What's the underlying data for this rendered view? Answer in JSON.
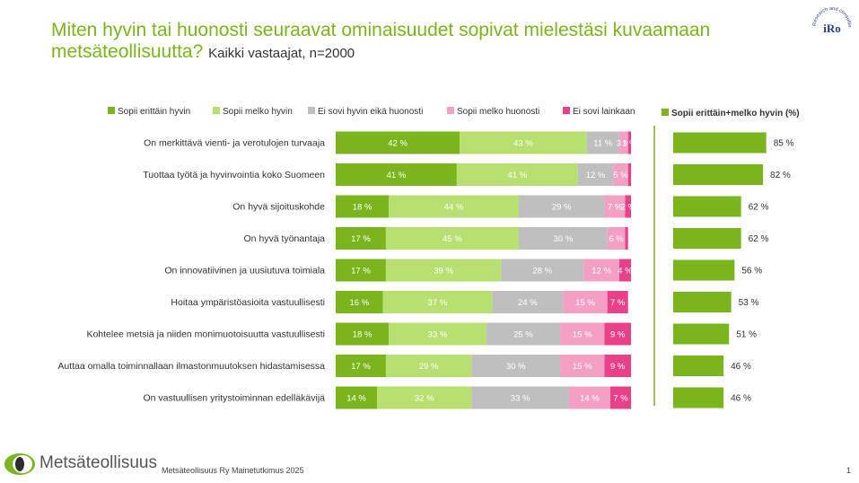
{
  "header": {
    "title": "Miten hyvin tai huonosti seuraavat ominaisuudet sopivat mielestäsi kuvaamaan metsäteollisuutta?",
    "subtitle": "Kaikki vastaajat, n=2000",
    "badge_text": "iRo",
    "badge_ring_text": "Research and consulting"
  },
  "footer": {
    "brand": "Metsäteollisuus",
    "source": "Metsäteollisuus Ry Mainetutkimus 2025",
    "page": "1"
  },
  "colors": {
    "title": "#7ab51d",
    "s1": "#7ab51d",
    "s2": "#b8e070",
    "s3": "#bfbfbf",
    "s4": "#f4a0c4",
    "s5": "#e8418a",
    "total": "#7ab51d"
  },
  "chart_data": [
    {
      "type": "bar",
      "orientation": "horizontal",
      "stacked": true,
      "legend_position": "top",
      "categories": [
        "On merkittävä vienti- ja verotulojen turvaaja",
        "Tuottaa työtä ja hyvinvointia koko Suomeen",
        "On hyvä sijoituskohde",
        "On hyvä työnantaja",
        "On innovatiivinen ja uusiutuva toimiala",
        "Hoitaa ympäristöasioita vastuullisesti",
        "Kohtelee metsiä ja niiden monimuotoisuutta vastuullisesti",
        "Auttaa omalla toiminnallaan ilmastonmuutoksen hidastamisessa",
        "On vastuullisen yritystoiminnan edelläkävijä"
      ],
      "series": [
        {
          "name": "Sopii erittäin hyvin",
          "values": [
            42,
            41,
            18,
            17,
            17,
            16,
            18,
            17,
            14
          ],
          "labels": [
            "42 %",
            "41 %",
            "18 %",
            "17 %",
            "17 %",
            "16 %",
            "18 %",
            "17 %",
            "14 %"
          ]
        },
        {
          "name": "Sopii melko hyvin",
          "values": [
            43,
            41,
            44,
            45,
            39,
            37,
            33,
            29,
            32
          ],
          "labels": [
            "43 %",
            "41 %",
            "44 %",
            "45 %",
            "39 %",
            "37 %",
            "33 %",
            "29 %",
            "32 %"
          ]
        },
        {
          "name": "Ei sovi hyvin eikä huonosti",
          "values": [
            11,
            12,
            29,
            30,
            28,
            24,
            25,
            30,
            33
          ],
          "labels": [
            "11 %",
            "12 %",
            "29 %",
            "30 %",
            "28 %",
            "24 %",
            "25 %",
            "30 %",
            "33 %"
          ]
        },
        {
          "name": "Sopii melko huonosti",
          "values": [
            3,
            5,
            7,
            6,
            12,
            15,
            15,
            15,
            14
          ],
          "labels": [
            "3 %",
            "5 %",
            "7 %",
            "6 %",
            "12 %",
            "15 %",
            "15 %",
            "15 %",
            "14 %"
          ]
        },
        {
          "name": "Ei sovi lainkaan",
          "values": [
            1,
            1,
            2,
            1,
            4,
            7,
            9,
            9,
            7
          ],
          "labels": [
            "1 %",
            "",
            "2 %",
            "",
            "4 %",
            "7 %",
            "9 %",
            "9 %",
            "7 %"
          ]
        }
      ],
      "xlim": [
        0,
        100
      ]
    },
    {
      "type": "bar",
      "orientation": "horizontal",
      "legend_position": "top",
      "series": [
        {
          "name": "Sopii erittäin+melko hyvin (%)",
          "values": [
            85,
            82,
            62,
            62,
            56,
            53,
            51,
            46,
            46
          ],
          "labels": [
            "85 %",
            "82 %",
            "62 %",
            "62 %",
            "56 %",
            "53 %",
            "51 %",
            "46 %",
            "46 %"
          ]
        }
      ],
      "xlim": [
        0,
        100
      ]
    }
  ]
}
